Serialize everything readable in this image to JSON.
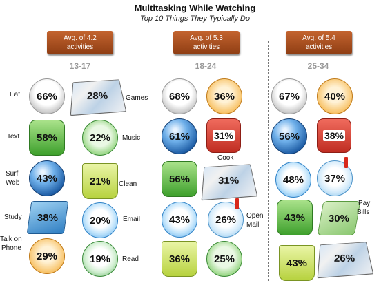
{
  "chart_data": {
    "type": "table",
    "title": "Multitasking While Watching",
    "subtitle": "Top 10 Things They Typically Do",
    "groups": [
      {
        "age": "13-17",
        "avg_label": "Avg. of 4.2 activities",
        "items": [
          {
            "activity": "Eat",
            "value": 66,
            "display": "66%",
            "icon": "fork-knife-icon"
          },
          {
            "activity": "Games",
            "value": 28,
            "display": "28%",
            "icon": "board-game-icon"
          },
          {
            "activity": "Text",
            "value": 58,
            "display": "58%",
            "icon": "chat-bubble-icon"
          },
          {
            "activity": "Music",
            "value": 22,
            "display": "22%",
            "icon": "music-note-icon"
          },
          {
            "activity": "Surf Web",
            "value": 43,
            "display": "43%",
            "icon": "globe-icon"
          },
          {
            "activity": "Clean",
            "value": 21,
            "display": "21%",
            "icon": "cleaning-bucket-icon"
          },
          {
            "activity": "Study",
            "value": 38,
            "display": "38%",
            "icon": "books-icon"
          },
          {
            "activity": "Email",
            "value": 20,
            "display": "20%",
            "icon": "envelope-icon"
          },
          {
            "activity": "Talk on Phone",
            "value": 29,
            "display": "29%",
            "icon": "phone-icon"
          },
          {
            "activity": "Read",
            "value": 19,
            "display": "19%",
            "icon": "reading-icon"
          }
        ]
      },
      {
        "age": "18-24",
        "avg_label": "Avg. of 5.3 activities",
        "items": [
          {
            "activity": "Eat",
            "value": 68,
            "display": "68%",
            "icon": "fork-knife-icon"
          },
          {
            "activity": "Talk on Phone",
            "value": 36,
            "display": "36%",
            "icon": "phone-icon"
          },
          {
            "activity": "Surf Web",
            "value": 61,
            "display": "61%",
            "icon": "globe-icon"
          },
          {
            "activity": "Cook",
            "value": 31,
            "display": "31%",
            "icon": "cooking-pot-icon"
          },
          {
            "activity": "Text",
            "value": 56,
            "display": "56%",
            "icon": "chat-bubble-icon"
          },
          {
            "activity": "Games",
            "value": 31,
            "display": "31%",
            "icon": "board-game-icon"
          },
          {
            "activity": "Email",
            "value": 43,
            "display": "43%",
            "icon": "envelope-icon"
          },
          {
            "activity": "Open Mail",
            "value": 26,
            "display": "26%",
            "icon": "mailbox-icon"
          },
          {
            "activity": "Clean",
            "value": 36,
            "display": "36%",
            "icon": "cleaning-bucket-icon"
          },
          {
            "activity": "Music",
            "value": 25,
            "display": "25%",
            "icon": "music-note-icon"
          }
        ]
      },
      {
        "age": "25-34",
        "avg_label": "Avg. of 5.4 activities",
        "items": [
          {
            "activity": "Eat",
            "value": 67,
            "display": "67%",
            "icon": "fork-knife-icon"
          },
          {
            "activity": "Talk on Phone",
            "value": 40,
            "display": "40%",
            "icon": "phone-icon"
          },
          {
            "activity": "Surf Web",
            "value": 56,
            "display": "56%",
            "icon": "globe-icon"
          },
          {
            "activity": "Cook",
            "value": 38,
            "display": "38%",
            "icon": "cooking-pot-icon"
          },
          {
            "activity": "Email",
            "value": 48,
            "display": "48%",
            "icon": "envelope-icon"
          },
          {
            "activity": "Open Mail",
            "value": 37,
            "display": "37%",
            "icon": "mailbox-icon"
          },
          {
            "activity": "Text",
            "value": 43,
            "display": "43%",
            "icon": "chat-bubble-icon"
          },
          {
            "activity": "Pay Bills",
            "value": 30,
            "display": "30%",
            "icon": "money-icon"
          },
          {
            "activity": "Clean",
            "value": 43,
            "display": "43%",
            "icon": "cleaning-bucket-icon"
          },
          {
            "activity": "Games",
            "value": 26,
            "display": "26%",
            "icon": "board-game-icon"
          }
        ]
      }
    ],
    "labels": {
      "eat": "Eat",
      "games": "Games",
      "text": "Text",
      "music": "Music",
      "surf_line1": "Surf",
      "surf_line2": "Web",
      "clean": "Clean",
      "study": "Study",
      "email": "Email",
      "talk_line1": "Talk on",
      "talk_line2": "Phone",
      "read": "Read",
      "cook": "Cook",
      "open_line1": "Open",
      "open_line2": "Mail",
      "pay_line1": "Pay",
      "pay_line2": "Bills"
    },
    "avg_boxes": [
      {
        "line1": "Avg. of 4.2",
        "line2": "activities"
      },
      {
        "line1": "Avg. of 5.3",
        "line2": "activities"
      },
      {
        "line1": "Avg. of 5.4",
        "line2": "activities"
      }
    ]
  }
}
